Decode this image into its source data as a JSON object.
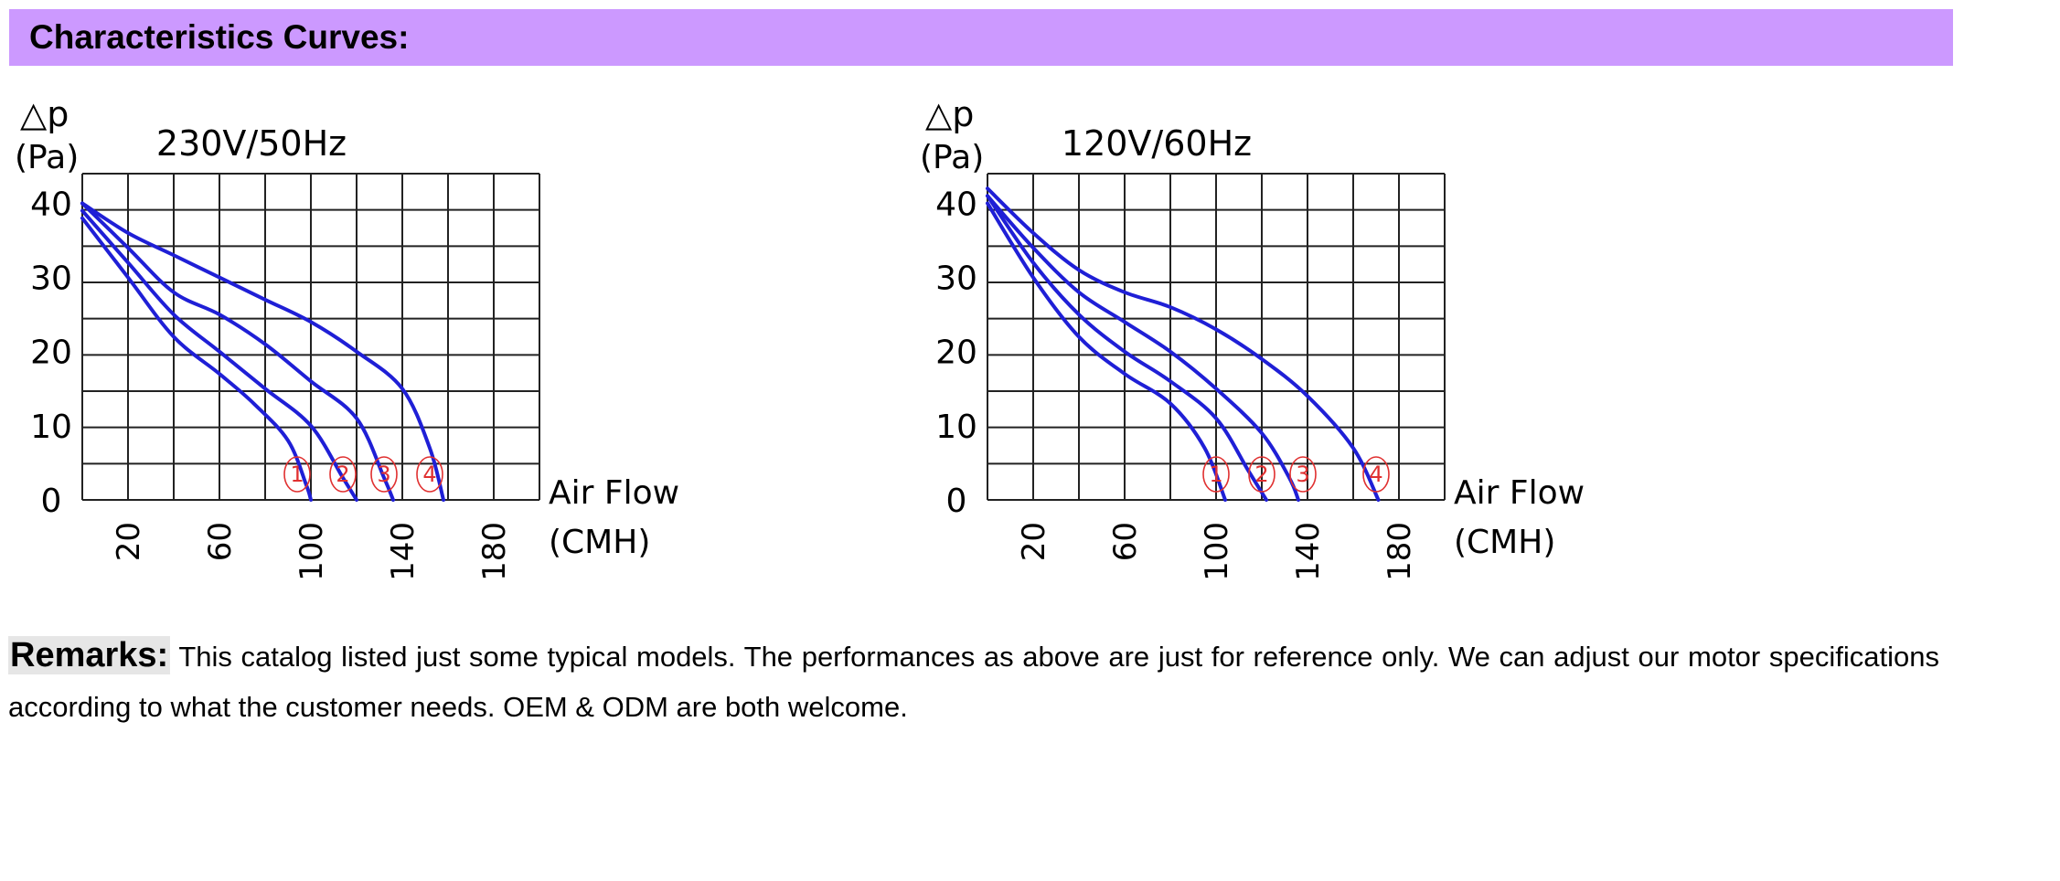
{
  "header": {
    "title": "Characteristics Curves:"
  },
  "chart_data": [
    {
      "type": "line",
      "title": "230V/50Hz",
      "ylabel_symbol": "△p",
      "ylabel_unit": "(Pa)",
      "xlabel_line1": "Air Flow",
      "xlabel_line2": "(CMH)",
      "xlim": [
        0,
        200
      ],
      "ylim": [
        0,
        44
      ],
      "x_ticks": [
        "20",
        "60",
        "100",
        "140",
        "180"
      ],
      "y_ticks": [
        "0",
        "10",
        "20",
        "30",
        "40"
      ],
      "grid": true,
      "line_color": "#1f1fd6",
      "marker_color": "#e03030",
      "series": [
        {
          "name": "①",
          "points": [
            [
              0,
              38
            ],
            [
              20,
              30
            ],
            [
              40,
              22
            ],
            [
              60,
              17
            ],
            [
              75,
              13
            ],
            [
              90,
              8
            ],
            [
              98,
              2
            ],
            [
              100,
              0
            ]
          ],
          "label_x": 94
        },
        {
          "name": "②",
          "points": [
            [
              0,
              39
            ],
            [
              20,
              32
            ],
            [
              40,
              25
            ],
            [
              60,
              20
            ],
            [
              80,
              15
            ],
            [
              100,
              10
            ],
            [
              114,
              3
            ],
            [
              120,
              0
            ]
          ],
          "label_x": 114
        },
        {
          "name": "③",
          "points": [
            [
              0,
              40
            ],
            [
              20,
              34
            ],
            [
              40,
              28
            ],
            [
              60,
              25
            ],
            [
              80,
              21
            ],
            [
              100,
              16
            ],
            [
              120,
              11
            ],
            [
              132,
              3
            ],
            [
              136,
              0
            ]
          ],
          "label_x": 132
        },
        {
          "name": "④",
          "points": [
            [
              0,
              40
            ],
            [
              20,
              36
            ],
            [
              40,
              33
            ],
            [
              60,
              30
            ],
            [
              80,
              27
            ],
            [
              100,
              24
            ],
            [
              120,
              20
            ],
            [
              140,
              15
            ],
            [
              152,
              7
            ],
            [
              158,
              0
            ]
          ],
          "label_x": 152
        }
      ]
    },
    {
      "type": "line",
      "title": "120V/60Hz",
      "ylabel_symbol": "△p",
      "ylabel_unit": "(Pa)",
      "xlabel_line1": "Air Flow",
      "xlabel_line2": "(CMH)",
      "xlim": [
        0,
        200
      ],
      "ylim": [
        0,
        44
      ],
      "x_ticks": [
        "20",
        "60",
        "100",
        "140",
        "180"
      ],
      "y_ticks": [
        "0",
        "10",
        "20",
        "30",
        "40"
      ],
      "grid": true,
      "line_color": "#1f1fd6",
      "marker_color": "#e03030",
      "series": [
        {
          "name": "①",
          "points": [
            [
              0,
              40
            ],
            [
              20,
              30
            ],
            [
              40,
              22
            ],
            [
              60,
              17
            ],
            [
              80,
              13
            ],
            [
              95,
              7
            ],
            [
              104,
              0
            ]
          ],
          "label_x": 100
        },
        {
          "name": "②",
          "points": [
            [
              0,
              41
            ],
            [
              20,
              32
            ],
            [
              40,
              25
            ],
            [
              60,
              20
            ],
            [
              80,
              16
            ],
            [
              100,
              11
            ],
            [
              114,
              4
            ],
            [
              122,
              0
            ]
          ],
          "label_x": 120
        },
        {
          "name": "③",
          "points": [
            [
              0,
              41
            ],
            [
              20,
              34
            ],
            [
              40,
              28
            ],
            [
              60,
              24
            ],
            [
              80,
              20
            ],
            [
              100,
              15
            ],
            [
              120,
              9
            ],
            [
              132,
              3
            ],
            [
              136,
              0
            ]
          ],
          "label_x": 138
        },
        {
          "name": "④",
          "points": [
            [
              0,
              42
            ],
            [
              20,
              36
            ],
            [
              40,
              31
            ],
            [
              60,
              28
            ],
            [
              80,
              26
            ],
            [
              100,
              23
            ],
            [
              120,
              19
            ],
            [
              140,
              14
            ],
            [
              160,
              7
            ],
            [
              171,
              0
            ]
          ],
          "label_x": 170
        }
      ]
    }
  ],
  "remarks": {
    "label": "Remarks:",
    "text": "This catalog listed just some typical models. The performances as above are just for reference only. We can adjust our motor specifications according to what the customer needs. OEM & ODM are both welcome."
  }
}
